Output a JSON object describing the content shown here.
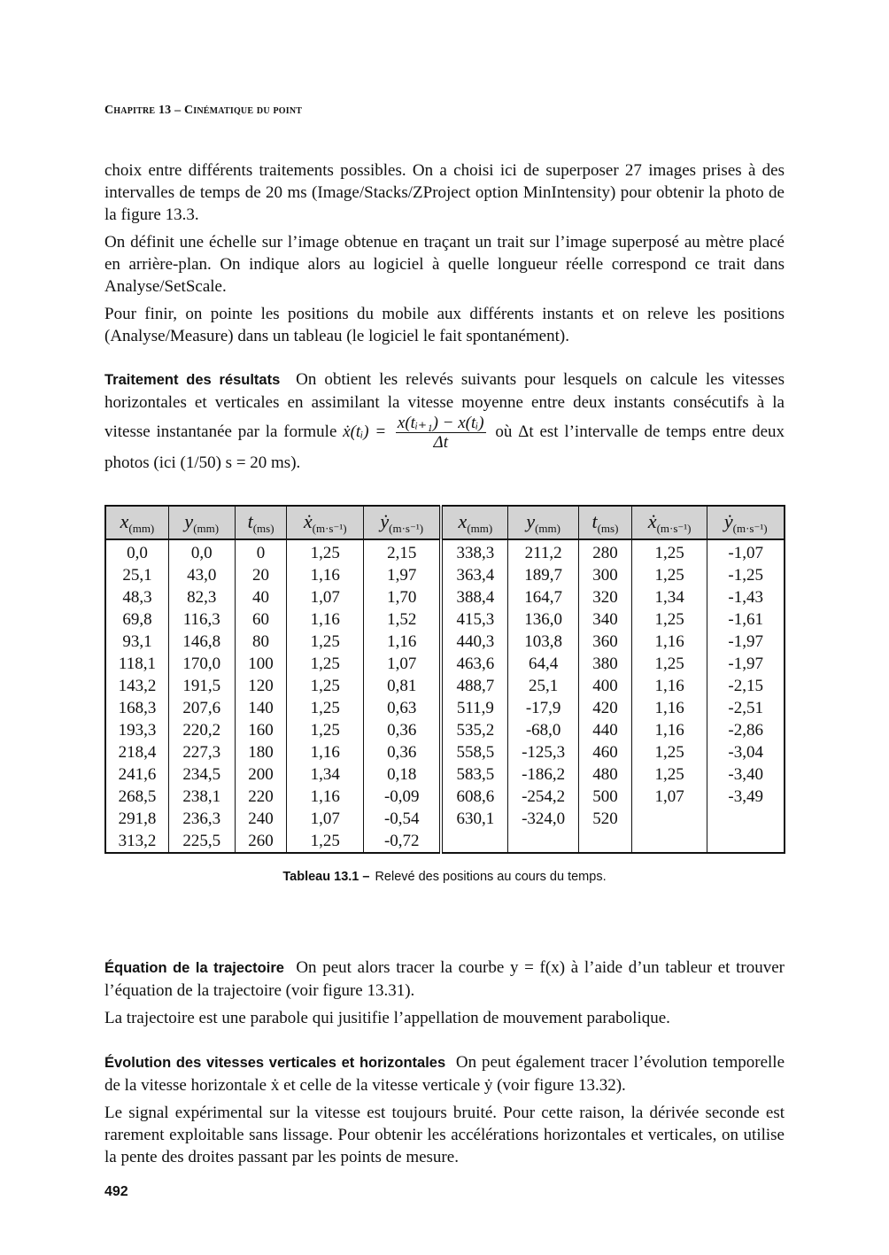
{
  "header": {
    "chapter": "Chapitre 13 – Cinématique du point"
  },
  "intro": [
    "choix entre différents traitements possibles. On a choisi ici de superposer 27 images prises à des intervalles de temps de 20 ms (Image/Stacks/ZProject option MinIntensity) pour obtenir la photo de la figure 13.3.",
    "On définit une échelle sur l’image obtenue en traçant un trait sur l’image superposé au mètre placé en arrière-plan. On indique alors au logiciel à quelle longueur réelle correspond ce trait dans Analyse/SetScale.",
    "Pour finir, on pointe les positions du mobile aux différents instants et on releve les positions (Analyse/Measure) dans un tableau (le logiciel le fait spontanément)."
  ],
  "traitement": {
    "heading": "Traitement des résultats",
    "text1": "On obtient les relevés suivants pour lesquels on calcule les vitesses horizontales et verticales en assimilant la vitesse moyenne entre deux instants consécutifs à la vitesse instantanée par la formule",
    "lhs": "ẋ(tᵢ) =",
    "num": "x(tᵢ₊₁) − x(tᵢ)",
    "den": "Δt",
    "text2": "où Δt est l’intervalle de temps entre deux photos (ici (1/50) s = 20 ms)."
  },
  "table": {
    "headers": [
      {
        "sym": "x",
        "unit": "(mm)"
      },
      {
        "sym": "y",
        "unit": "(mm)"
      },
      {
        "sym": "t",
        "unit": "(ms)"
      },
      {
        "sym": "ẋ",
        "unit": "(m·s⁻¹)"
      },
      {
        "sym": "ẏ",
        "unit": "(m·s⁻¹)"
      },
      {
        "sym": "x",
        "unit": "(mm)"
      },
      {
        "sym": "y",
        "unit": "(mm)"
      },
      {
        "sym": "t",
        "unit": "(ms)"
      },
      {
        "sym": "ẋ",
        "unit": "(m·s⁻¹)"
      },
      {
        "sym": "ẏ",
        "unit": "(m·s⁻¹)"
      }
    ],
    "rows": [
      [
        "0,0",
        "0,0",
        "0",
        "1,25",
        "2,15",
        "338,3",
        "211,2",
        "280",
        "1,25",
        "-1,07"
      ],
      [
        "25,1",
        "43,0",
        "20",
        "1,16",
        "1,97",
        "363,4",
        "189,7",
        "300",
        "1,25",
        "-1,25"
      ],
      [
        "48,3",
        "82,3",
        "40",
        "1,07",
        "1,70",
        "388,4",
        "164,7",
        "320",
        "1,34",
        "-1,43"
      ],
      [
        "69,8",
        "116,3",
        "60",
        "1,16",
        "1,52",
        "415,3",
        "136,0",
        "340",
        "1,25",
        "-1,61"
      ],
      [
        "93,1",
        "146,8",
        "80",
        "1,25",
        "1,16",
        "440,3",
        "103,8",
        "360",
        "1,16",
        "-1,97"
      ],
      [
        "118,1",
        "170,0",
        "100",
        "1,25",
        "1,07",
        "463,6",
        "64,4",
        "380",
        "1,25",
        "-1,97"
      ],
      [
        "143,2",
        "191,5",
        "120",
        "1,25",
        "0,81",
        "488,7",
        "25,1",
        "400",
        "1,16",
        "-2,15"
      ],
      [
        "168,3",
        "207,6",
        "140",
        "1,25",
        "0,63",
        "511,9",
        "-17,9",
        "420",
        "1,16",
        "-2,51"
      ],
      [
        "193,3",
        "220,2",
        "160",
        "1,25",
        "0,36",
        "535,2",
        "-68,0",
        "440",
        "1,16",
        "-2,86"
      ],
      [
        "218,4",
        "227,3",
        "180",
        "1,16",
        "0,36",
        "558,5",
        "-125,3",
        "460",
        "1,25",
        "-3,04"
      ],
      [
        "241,6",
        "234,5",
        "200",
        "1,34",
        "0,18",
        "583,5",
        "-186,2",
        "480",
        "1,25",
        "-3,40"
      ],
      [
        "268,5",
        "238,1",
        "220",
        "1,16",
        "-0,09",
        "608,6",
        "-254,2",
        "500",
        "1,07",
        "-3,49"
      ],
      [
        "291,8",
        "236,3",
        "240",
        "1,07",
        "-0,54",
        "630,1",
        "-324,0",
        "520",
        "",
        ""
      ],
      [
        "313,2",
        "225,5",
        "260",
        "1,25",
        "-0,72",
        "",
        "",
        "",
        "",
        ""
      ]
    ],
    "caption_label": "Tableau 13.1 –",
    "caption_text": "Relevé des positions au cours du temps."
  },
  "equation": {
    "heading": "Équation de la trajectoire",
    "text": "On peut alors tracer la courbe y = f(x) à l’aide d’un tableur et trouver l’équation de la trajectoire (voir figure 13.31).",
    "text2": "La trajectoire est une parabole qui jusitifie l’appellation de mouvement parabolique."
  },
  "evolution": {
    "heading": "Évolution des vitesses verticales et horizontales",
    "text": "On peut également tracer l’évolution temporelle de la vitesse horizontale ẋ et celle de la vitesse verticale ẏ (voir figure 13.32).",
    "text2": "Le signal expérimental sur la vitesse est toujours bruité. Pour cette raison, la dérivée seconde est rarement exploitable sans lissage. Pour obtenir les accélérations horizontales et verticales, on utilise la pente des droites passant par les points de mesure."
  },
  "page_number": "492"
}
